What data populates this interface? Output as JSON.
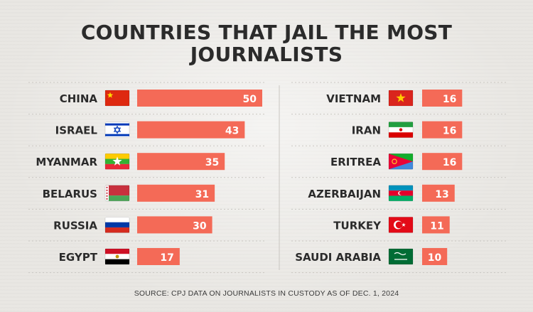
{
  "title_line1": "COUNTRIES THAT JAIL THE MOST",
  "title_line2": "JOURNALISTS",
  "source": "SOURCE: CPJ DATA ON JOURNALISTS IN CUSTODY AS OF DEC. 1, 2024",
  "colors": {
    "bar": "#f46a57",
    "text": "#2b2b2b",
    "bar_text": "#ffffff",
    "background": "#e9e7e3"
  },
  "chart_data": {
    "type": "bar",
    "title": "COUNTRIES THAT JAIL THE MOST JOURNALISTS",
    "orientation": "horizontal",
    "categories": [
      "CHINA",
      "ISRAEL",
      "MYANMAR",
      "BELARUS",
      "RUSSIA",
      "EGYPT",
      "VIETNAM",
      "IRAN",
      "ERITREA",
      "AZERBAIJAN",
      "TURKEY",
      "SAUDI ARABIA"
    ],
    "values": [
      50,
      43,
      35,
      31,
      30,
      17,
      16,
      16,
      16,
      13,
      11,
      10
    ],
    "flags": [
      "china-flag-icon",
      "israel-flag-icon",
      "myanmar-flag-icon",
      "belarus-flag-icon",
      "russia-flag-icon",
      "egypt-flag-icon",
      "vietnam-flag-icon",
      "iran-flag-icon",
      "eritrea-flag-icon",
      "azerbaijan-flag-icon",
      "turkey-flag-icon",
      "saudi-arabia-flag-icon"
    ],
    "xlim": [
      0,
      50
    ],
    "grid": true,
    "legend": "none"
  }
}
